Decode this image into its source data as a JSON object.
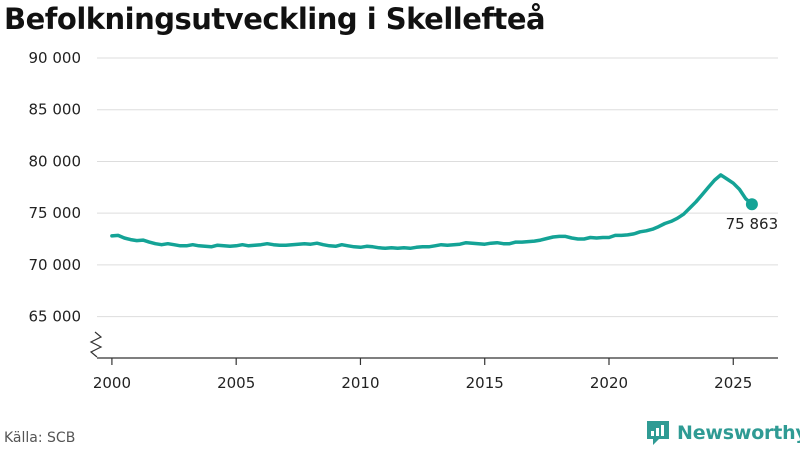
{
  "header": {
    "title": "Befolkningsutveckling i Skellefteå"
  },
  "footer": {
    "source": "Källa: SCB",
    "brand": "Newsworthy"
  },
  "colors": {
    "line": "#14a396",
    "grid": "#dddddd",
    "brand": "#2f9b94"
  },
  "icons": {
    "brand_logo": "newsworthy-logo-icon",
    "axis_break": "axis-break-icon"
  },
  "chart_data": {
    "type": "line",
    "title": "Befolkningsutveckling i Skellefteå",
    "xlabel": "",
    "ylabel": "",
    "xlim": [
      1999.4,
      2026.8
    ],
    "ylim": [
      61000,
      90000
    ],
    "y_axis_break": true,
    "grid": true,
    "y_ticks": [
      65000,
      70000,
      75000,
      80000,
      85000,
      90000
    ],
    "y_tick_labels": [
      "65 000",
      "70 000",
      "75 000",
      "80 000",
      "85 000",
      "90 000"
    ],
    "x_ticks": [
      2000,
      2005,
      2010,
      2015,
      2020,
      2025
    ],
    "x_tick_labels": [
      "2000",
      "2005",
      "2010",
      "2015",
      "2020",
      "2025"
    ],
    "series": [
      {
        "x": [
          2000.0,
          2000.25,
          2000.5,
          2000.75,
          2001.0,
          2001.25,
          2001.5,
          2001.75,
          2002.0,
          2002.25,
          2002.5,
          2002.75,
          2003.0,
          2003.25,
          2003.5,
          2003.75,
          2004.0,
          2004.25,
          2004.5,
          2004.75,
          2005.0,
          2005.25,
          2005.5,
          2005.75,
          2006.0,
          2006.25,
          2006.5,
          2006.75,
          2007.0,
          2007.25,
          2007.5,
          2007.75,
          2008.0,
          2008.25,
          2008.5,
          2008.75,
          2009.0,
          2009.25,
          2009.5,
          2009.75,
          2010.0,
          2010.25,
          2010.5,
          2010.75,
          2011.0,
          2011.25,
          2011.5,
          2011.75,
          2012.0,
          2012.25,
          2012.5,
          2012.75,
          2013.0,
          2013.25,
          2013.5,
          2013.75,
          2014.0,
          2014.25,
          2014.5,
          2014.75,
          2015.0,
          2015.25,
          2015.5,
          2015.75,
          2016.0,
          2016.25,
          2016.5,
          2016.75,
          2017.0,
          2017.25,
          2017.5,
          2017.75,
          2018.0,
          2018.25,
          2018.5,
          2018.75,
          2019.0,
          2019.25,
          2019.5,
          2019.75,
          2020.0,
          2020.25,
          2020.5,
          2020.75,
          2021.0,
          2021.25,
          2021.5,
          2021.75,
          2022.0,
          2022.25,
          2022.5,
          2022.75,
          2023.0,
          2023.25,
          2023.5,
          2023.75,
          2024.0,
          2024.25,
          2024.5,
          2024.75,
          2025.0,
          2025.25,
          2025.5,
          2025.75
        ],
        "values": [
          72800,
          72850,
          72600,
          72450,
          72350,
          72400,
          72200,
          72050,
          71950,
          72050,
          71950,
          71850,
          71850,
          71950,
          71850,
          71800,
          71750,
          71900,
          71850,
          71800,
          71850,
          71950,
          71850,
          71900,
          71950,
          72050,
          71950,
          71900,
          71900,
          71950,
          72000,
          72050,
          72000,
          72100,
          71950,
          71850,
          71800,
          71950,
          71850,
          71750,
          71700,
          71800,
          71750,
          71650,
          71600,
          71650,
          71600,
          71650,
          71600,
          71700,
          71750,
          71750,
          71850,
          71950,
          71900,
          71950,
          72000,
          72150,
          72100,
          72050,
          72000,
          72100,
          72150,
          72050,
          72050,
          72200,
          72200,
          72250,
          72300,
          72400,
          72550,
          72700,
          72750,
          72750,
          72600,
          72500,
          72500,
          72650,
          72600,
          72650,
          72650,
          72850,
          72850,
          72900,
          73000,
          73200,
          73300,
          73450,
          73700,
          74000,
          74200,
          74500,
          74900,
          75500,
          76100,
          76800,
          77500,
          78200,
          78700,
          78300,
          77900,
          77300,
          76400,
          75863
        ]
      }
    ],
    "end_label": {
      "x": 2025.75,
      "value": 75863,
      "text": "75 863"
    }
  }
}
